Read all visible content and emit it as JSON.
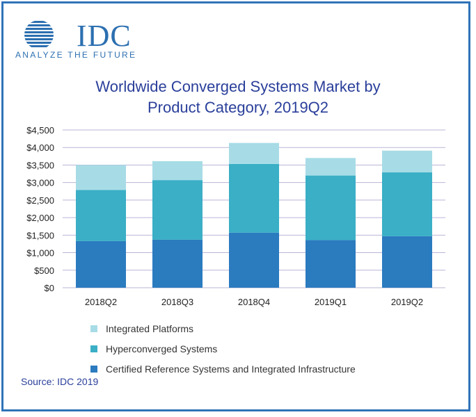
{
  "logo": {
    "name": "IDC",
    "tagline": "ANALYZE THE FUTURE"
  },
  "title_line1": "Worldwide Converged Systems Market by",
  "title_line2": "Product Category, 2019Q2",
  "source": "Source: IDC 2019",
  "colors": {
    "integrated": "#a7dce6",
    "hyper": "#3aafc6",
    "certified": "#2b7bbf",
    "title": "#2a3f9a",
    "border": "#2f73b8"
  },
  "chart_data": {
    "type": "bar",
    "stacked": true,
    "categories": [
      "2018Q2",
      "2018Q3",
      "2018Q4",
      "2019Q1",
      "2019Q2"
    ],
    "series": [
      {
        "name": "Certified Reference Systems and Integrated Infrastructure",
        "values": [
          1330,
          1370,
          1570,
          1360,
          1470
        ],
        "color": "#2b7bbf"
      },
      {
        "name": "Hyperconverged Systems",
        "values": [
          1460,
          1700,
          1960,
          1840,
          1820
        ],
        "color": "#3aafc6"
      },
      {
        "name": "Integrated Platforms",
        "values": [
          710,
          540,
          600,
          500,
          620
        ],
        "color": "#a7dce6"
      }
    ],
    "yticks": [
      "$0",
      "$500",
      "$1,000",
      "$1,500",
      "$2,000",
      "$2,500",
      "$3,000",
      "$3,500",
      "$4,000",
      "$4,500"
    ],
    "ylim": [
      0,
      4500
    ],
    "grid": true,
    "legend_position": "bottom"
  }
}
